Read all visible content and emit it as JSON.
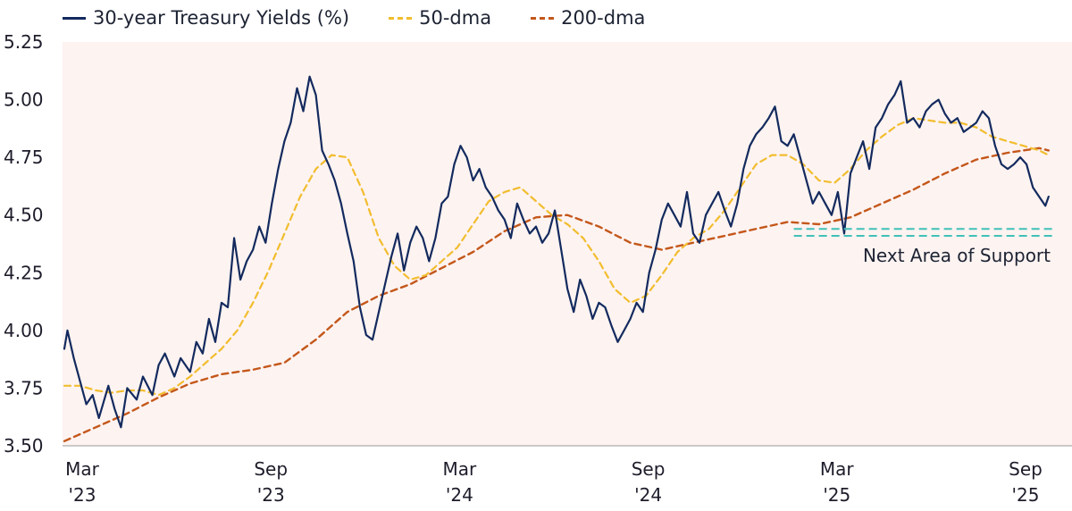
{
  "chart_data": {
    "type": "line",
    "title": "",
    "xlabel": "",
    "ylabel": "",
    "ylim": [
      3.5,
      5.25
    ],
    "yticks": [
      "5.25",
      "5.00",
      "4.75",
      "4.50",
      "4.25",
      "4.00",
      "3.75",
      "3.50"
    ],
    "xticks": [
      {
        "x": 0,
        "line1": "Mar",
        "line2": "'23"
      },
      {
        "x": 6,
        "line1": "Sep",
        "line2": "'23"
      },
      {
        "x": 12,
        "line1": "Mar",
        "line2": "'24"
      },
      {
        "x": 18,
        "line1": "Sep",
        "line2": "'24"
      },
      {
        "x": 24,
        "line1": "Mar",
        "line2": "'25"
      },
      {
        "x": 30,
        "line1": "Sep",
        "line2": "'25"
      }
    ],
    "xunits": "months since Mar 2023",
    "xlim": [
      0,
      31.5
    ],
    "grid": false,
    "legend_position": "top-left",
    "colors": {
      "yield": "#132a5e",
      "dma50": "#f2bd2e",
      "dma200": "#c4571a",
      "support": "#3fc1b8",
      "plot_bg": "#fdf3f1"
    },
    "series": [
      {
        "name": "30-year Treasury Yields (%)",
        "style": "solid",
        "x": [
          0,
          0.1,
          0.3,
          0.5,
          0.7,
          0.9,
          1.1,
          1.4,
          1.6,
          1.8,
          2.0,
          2.3,
          2.5,
          2.8,
          3.0,
          3.2,
          3.5,
          3.7,
          4.0,
          4.2,
          4.4,
          4.6,
          4.8,
          5.0,
          5.2,
          5.4,
          5.6,
          5.8,
          6.0,
          6.2,
          6.4,
          6.6,
          6.8,
          7.0,
          7.2,
          7.4,
          7.6,
          7.8,
          8.0,
          8.2,
          8.4,
          8.6,
          8.8,
          9.0,
          9.2,
          9.4,
          9.6,
          9.8,
          10.0,
          10.2,
          10.4,
          10.6,
          10.8,
          11.0,
          11.2,
          11.4,
          11.6,
          11.8,
          12.0,
          12.2,
          12.4,
          12.6,
          12.8,
          13.0,
          13.2,
          13.4,
          13.6,
          13.8,
          14.0,
          14.2,
          14.4,
          14.6,
          14.8,
          15.0,
          15.2,
          15.4,
          15.6,
          15.8,
          16.0,
          16.2,
          16.4,
          16.6,
          16.8,
          17.0,
          17.2,
          17.4,
          17.6,
          17.8,
          18.0,
          18.2,
          18.4,
          18.6,
          18.8,
          19.0,
          19.2,
          19.4,
          19.6,
          19.8,
          20.0,
          20.2,
          20.4,
          20.6,
          20.8,
          21.0,
          21.2,
          21.4,
          21.6,
          21.8,
          22.0,
          22.2,
          22.4,
          22.6,
          22.8,
          23.0,
          23.2,
          23.4,
          23.6,
          23.8,
          24.0,
          24.2,
          24.4,
          24.6,
          24.8,
          25.0,
          25.2,
          25.4,
          25.6,
          25.8,
          26.0,
          26.2,
          26.4,
          26.6,
          26.8,
          27.0,
          27.2,
          27.4,
          27.6,
          27.8,
          28.0,
          28.2,
          28.4,
          28.6,
          28.8,
          29.0,
          29.2,
          29.4,
          29.6,
          29.8,
          30.0,
          30.2,
          30.4,
          30.6,
          30.8,
          31.0,
          31.2,
          31.3
        ],
        "values": [
          3.92,
          4.0,
          3.88,
          3.78,
          3.68,
          3.72,
          3.62,
          3.76,
          3.66,
          3.58,
          3.75,
          3.7,
          3.8,
          3.72,
          3.85,
          3.9,
          3.8,
          3.88,
          3.82,
          3.95,
          3.9,
          4.05,
          3.95,
          4.12,
          4.1,
          4.4,
          4.22,
          4.3,
          4.35,
          4.45,
          4.38,
          4.55,
          4.7,
          4.82,
          4.9,
          5.05,
          4.95,
          5.1,
          5.02,
          4.78,
          4.72,
          4.65,
          4.55,
          4.42,
          4.3,
          4.1,
          3.98,
          3.96,
          4.08,
          4.2,
          4.32,
          4.42,
          4.26,
          4.38,
          4.45,
          4.4,
          4.3,
          4.4,
          4.55,
          4.58,
          4.72,
          4.8,
          4.75,
          4.65,
          4.7,
          4.62,
          4.58,
          4.52,
          4.48,
          4.4,
          4.55,
          4.48,
          4.42,
          4.45,
          4.38,
          4.42,
          4.52,
          4.35,
          4.18,
          4.08,
          4.22,
          4.15,
          4.05,
          4.12,
          4.1,
          4.02,
          3.95,
          4.0,
          4.05,
          4.12,
          4.08,
          4.25,
          4.35,
          4.48,
          4.55,
          4.5,
          4.45,
          4.6,
          4.42,
          4.38,
          4.5,
          4.55,
          4.6,
          4.52,
          4.45,
          4.55,
          4.7,
          4.8,
          4.85,
          4.88,
          4.92,
          4.97,
          4.82,
          4.8,
          4.85,
          4.75,
          4.65,
          4.55,
          4.6,
          4.55,
          4.5,
          4.6,
          4.42,
          4.68,
          4.75,
          4.82,
          4.7,
          4.88,
          4.92,
          4.98,
          5.02,
          5.08,
          4.9,
          4.92,
          4.88,
          4.95,
          4.98,
          5.0,
          4.94,
          4.9,
          4.92,
          4.86,
          4.88,
          4.9,
          4.95,
          4.92,
          4.8,
          4.72,
          4.7,
          4.72,
          4.75,
          4.72,
          4.62,
          4.58,
          4.54,
          4.58
        ]
      },
      {
        "name": "50-dma",
        "style": "dashed",
        "x": [
          0,
          0.5,
          1.0,
          1.5,
          2.0,
          2.5,
          3.0,
          3.5,
          4.0,
          4.5,
          5.0,
          5.5,
          6.0,
          6.5,
          7.0,
          7.5,
          8.0,
          8.5,
          9.0,
          9.5,
          10.0,
          10.5,
          11.0,
          11.5,
          12.0,
          12.5,
          13.0,
          13.5,
          14.0,
          14.5,
          15.0,
          15.5,
          16.0,
          16.5,
          17.0,
          17.5,
          18.0,
          18.5,
          19.0,
          19.5,
          20.0,
          20.5,
          21.0,
          21.5,
          22.0,
          22.5,
          23.0,
          23.5,
          24.0,
          24.5,
          25.0,
          25.5,
          26.0,
          26.5,
          27.0,
          27.5,
          28.0,
          28.5,
          29.0,
          29.5,
          30.0,
          30.5,
          31.0,
          31.3
        ],
        "values": [
          3.76,
          3.76,
          3.74,
          3.73,
          3.74,
          3.74,
          3.72,
          3.75,
          3.8,
          3.86,
          3.92,
          4.0,
          4.12,
          4.26,
          4.42,
          4.58,
          4.7,
          4.76,
          4.75,
          4.6,
          4.4,
          4.28,
          4.22,
          4.24,
          4.3,
          4.36,
          4.46,
          4.56,
          4.6,
          4.62,
          4.56,
          4.5,
          4.46,
          4.4,
          4.3,
          4.18,
          4.12,
          4.15,
          4.24,
          4.34,
          4.4,
          4.44,
          4.52,
          4.62,
          4.72,
          4.76,
          4.76,
          4.72,
          4.65,
          4.64,
          4.7,
          4.78,
          4.84,
          4.89,
          4.92,
          4.91,
          4.9,
          4.9,
          4.88,
          4.84,
          4.82,
          4.8,
          4.78,
          4.76
        ]
      },
      {
        "name": "200-dma",
        "style": "dashed",
        "x": [
          0,
          1,
          2,
          3,
          4,
          5,
          6,
          7,
          8,
          9,
          10,
          11,
          12,
          13,
          14,
          15,
          16,
          17,
          18,
          19,
          20,
          21,
          22,
          23,
          24,
          25,
          26,
          27,
          28,
          29,
          30,
          31,
          31.3
        ],
        "values": [
          3.52,
          3.58,
          3.64,
          3.71,
          3.77,
          3.81,
          3.83,
          3.86,
          3.96,
          4.08,
          4.15,
          4.2,
          4.27,
          4.34,
          4.43,
          4.49,
          4.5,
          4.45,
          4.38,
          4.35,
          4.38,
          4.41,
          4.44,
          4.47,
          4.46,
          4.49,
          4.55,
          4.61,
          4.68,
          4.74,
          4.77,
          4.79,
          4.78
        ]
      }
    ],
    "support_zone": {
      "x_start": 23.2,
      "x_end": 31.5,
      "y_upper": 4.44,
      "y_lower": 4.41
    },
    "annotation": "Next Area of Support"
  }
}
